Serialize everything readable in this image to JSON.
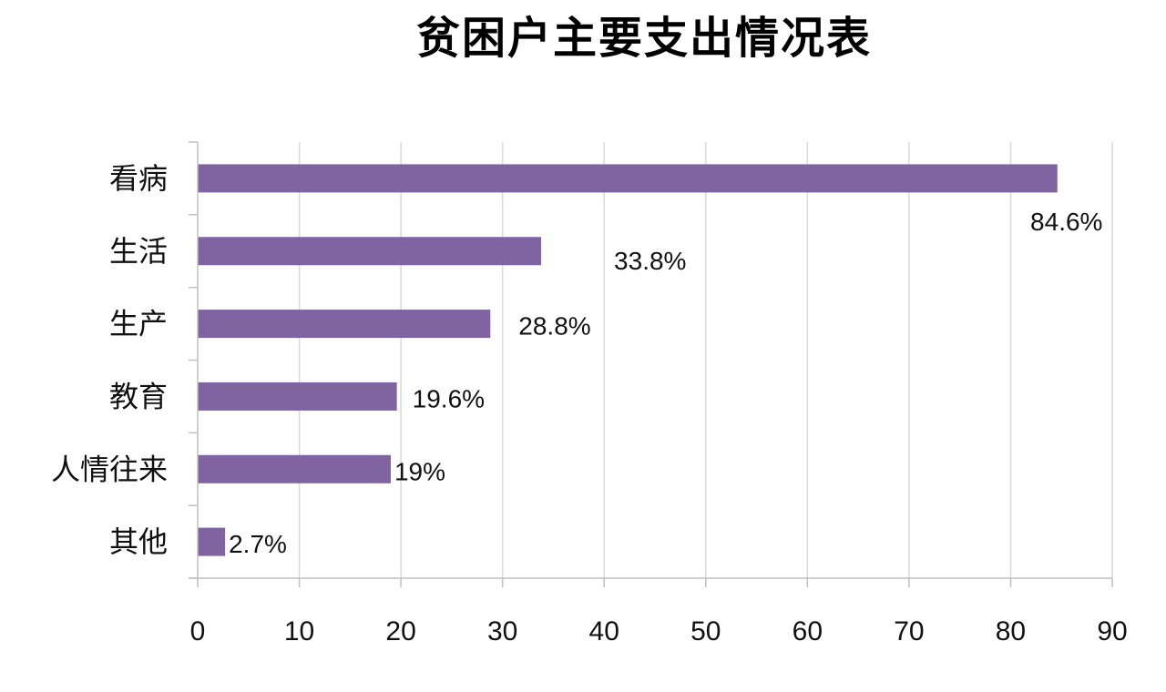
{
  "chart_data": {
    "type": "bar",
    "orientation": "horizontal",
    "title": "贫困户主要支出情况表",
    "categories": [
      "看病",
      "生活",
      "生产",
      "教育",
      "人情往来",
      "其他"
    ],
    "values": [
      84.6,
      33.8,
      28.8,
      19.6,
      19,
      2.7
    ],
    "data_labels": [
      "84.6%",
      "33.8%",
      "28.8%",
      "19.6%",
      "19%",
      "2.7%"
    ],
    "xlim": [
      0,
      90
    ],
    "x_ticks": [
      0,
      10,
      20,
      30,
      40,
      50,
      60,
      70,
      80,
      90
    ],
    "xlabel": "",
    "ylabel": "",
    "grid": "vertical",
    "legend": "none",
    "bar_color": "#8064a2",
    "grid_color": "#d9d9d9",
    "axis_color": "#bfbfbf"
  }
}
